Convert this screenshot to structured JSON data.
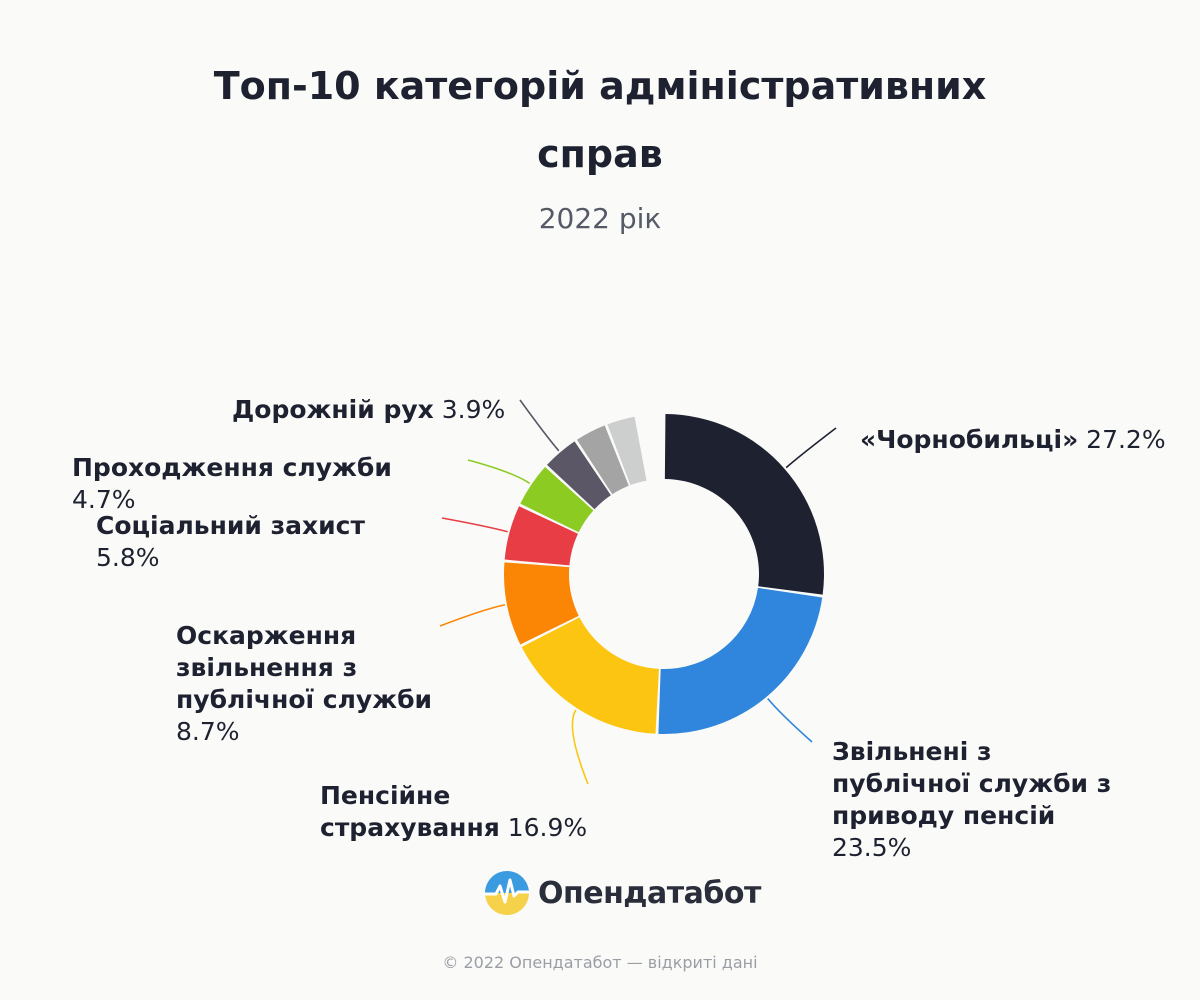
{
  "header": {
    "title": "Топ-10 категорій адміністративних справ",
    "subtitle": "2022 рік"
  },
  "chart_data": {
    "type": "pie",
    "style": "donut",
    "title": "Топ-10 категорій адміністративних справ",
    "subtitle": "2022 рік",
    "slices": [
      {
        "label": "«Чорнобильці»",
        "value": 27.2,
        "value_label": "27.2%",
        "color": "#1e2130"
      },
      {
        "label": "Звільнені з публічної служби з приводу пенсій",
        "value": 23.5,
        "value_label": "23.5%",
        "color": "#2f86dc"
      },
      {
        "label": "Пенсійне страхування",
        "value": 16.9,
        "value_label": "16.9%",
        "color": "#fbc511"
      },
      {
        "label": "Оскарження звільнення з публічної служби",
        "value": 8.7,
        "value_label": "8.7%",
        "color": "#fb8605"
      },
      {
        "label": "Соціальний захист",
        "value": 5.8,
        "value_label": "5.8%",
        "color": "#e83d45"
      },
      {
        "label": "Проходження служби",
        "value": 4.7,
        "value_label": "4.7%",
        "color": "#8ccb22"
      },
      {
        "label": "Дорожній рух",
        "value": 3.9,
        "value_label": "3.9%",
        "color": "#5b5766"
      },
      {
        "label": "",
        "value": 3.4,
        "value_label": "",
        "color": "#a4a4a4"
      },
      {
        "label": "",
        "value": 3.1,
        "value_label": "",
        "color": "#cdcece"
      }
    ],
    "legend": "none",
    "labels_position": "outside-with-leader-lines"
  },
  "branding": {
    "logo_text": "Опендатабот",
    "logo_icon": "opendatabot-logo-icon"
  },
  "footer": {
    "text": "© 2022 Опендатабот — відкриті дані"
  }
}
